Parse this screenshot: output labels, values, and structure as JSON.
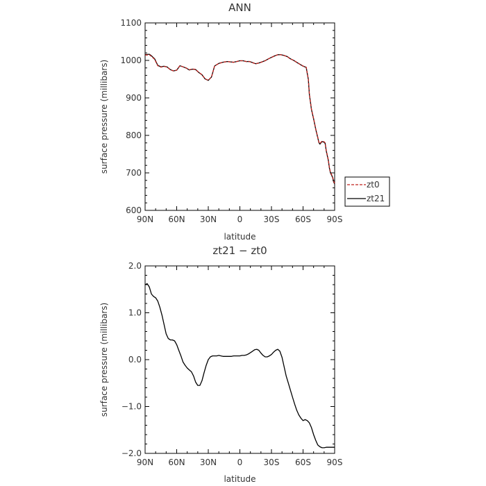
{
  "chart_data": [
    {
      "type": "line",
      "title": "ANN",
      "xlabel": "latitude",
      "ylabel": "surface pressure (millibars)",
      "xlim": [
        -90,
        90
      ],
      "ylim": [
        600,
        1100
      ],
      "x_ticks": [
        -90,
        -60,
        -30,
        0,
        30,
        60,
        90
      ],
      "x_tick_labels": [
        "90N",
        "60N",
        "30N",
        "0",
        "30S",
        "60S",
        "90S"
      ],
      "y_ticks": [
        600,
        700,
        800,
        900,
        1000,
        1100
      ],
      "y_tick_labels": [
        "600",
        "700",
        "800",
        "900",
        "1000",
        "1100"
      ],
      "legend_position": "right-bottom",
      "series": [
        {
          "name": "zt0",
          "color": "#c0201c",
          "dash": "dashed",
          "x": [
            -90,
            -86,
            -84,
            -81,
            -78,
            -75,
            -72,
            -69,
            -66,
            -63,
            -60,
            -57,
            -54,
            -51,
            -48,
            -45,
            -42,
            -39,
            -36,
            -33,
            -30,
            -27,
            -24,
            -20,
            -16,
            -12,
            -9,
            -6,
            -3,
            0,
            3,
            6,
            9,
            12,
            15,
            18,
            21,
            24,
            27,
            30,
            33,
            36,
            39,
            42,
            45,
            48,
            51,
            54,
            57,
            60,
            63,
            65,
            66,
            68,
            70,
            72,
            74,
            75,
            76,
            78,
            80,
            81,
            82,
            84,
            85,
            86,
            88,
            89,
            90
          ],
          "values": [
            1014,
            1015,
            1011,
            1003,
            986,
            982,
            984,
            982,
            975,
            972,
            974,
            986,
            983,
            980,
            975,
            977,
            976,
            968,
            962,
            951,
            947,
            956,
            985,
            992,
            995,
            997,
            996,
            995,
            997,
            999,
            999,
            997,
            997,
            994,
            991,
            993,
            996,
            999,
            1004,
            1008,
            1012,
            1015,
            1015,
            1013,
            1010,
            1004,
            1000,
            995,
            990,
            985,
            982,
            950,
            910,
            870,
            845,
            818,
            795,
            782,
            778,
            785,
            783,
            780,
            760,
            735,
            715,
            702,
            690,
            678,
            672
          ]
        },
        {
          "name": "zt21",
          "color": "#000000",
          "dash": "solid",
          "x": [
            -90,
            -86,
            -84,
            -81,
            -78,
            -75,
            -72,
            -69,
            -66,
            -63,
            -60,
            -57,
            -54,
            -51,
            -48,
            -45,
            -42,
            -39,
            -36,
            -33,
            -30,
            -27,
            -24,
            -20,
            -16,
            -12,
            -9,
            -6,
            -3,
            0,
            3,
            6,
            9,
            12,
            15,
            18,
            21,
            24,
            27,
            30,
            33,
            36,
            39,
            42,
            45,
            48,
            51,
            54,
            57,
            60,
            63,
            65,
            66,
            68,
            70,
            72,
            74,
            75,
            76,
            78,
            80,
            81,
            82,
            84,
            85,
            86,
            88,
            89,
            90
          ],
          "values": [
            1015.6,
            1016.5,
            1012.4,
            1004.3,
            987.0,
            982.8,
            984.5,
            982.4,
            975.3,
            972.0,
            973.9,
            985.7,
            982.7,
            979.6,
            974.5,
            976.6,
            975.6,
            967.6,
            961.6,
            950.6,
            946.7,
            955.8,
            985.1,
            992.1,
            995.1,
            997.1,
            996.1,
            995.1,
            997.1,
            999.1,
            999.1,
            997.1,
            997.2,
            994.2,
            991.2,
            993.2,
            996.2,
            999.2,
            1004.1,
            1008.1,
            1012.1,
            1015.1,
            1015.2,
            1013.2,
            1010.2,
            1004.2,
            1000.1,
            994.9,
            989.7,
            984.6,
            981.5,
            949.4,
            909.3,
            868.9,
            843.9,
            816.8,
            793.7,
            780.7,
            776.6,
            783.6,
            781.7,
            778.7,
            758.6,
            733.4,
            713.3,
            700.2,
            688.2,
            676.2,
            670.2
          ]
        }
      ]
    },
    {
      "type": "line",
      "title": "zt21 − zt0",
      "xlabel": "latitude",
      "ylabel": "surface pressure (millibars)",
      "xlim": [
        -90,
        90
      ],
      "ylim": [
        -2.0,
        2.0
      ],
      "x_ticks": [
        -90,
        -60,
        -30,
        0,
        30,
        60,
        90
      ],
      "x_tick_labels": [
        "90N",
        "60N",
        "30N",
        "0",
        "30S",
        "60S",
        "90S"
      ],
      "y_ticks": [
        -2.0,
        -1.0,
        0.0,
        1.0,
        2.0
      ],
      "y_tick_labels": [
        "−2.0",
        "−1.0",
        "0.0",
        "1.0",
        "2.0"
      ],
      "series": [
        {
          "color": "#000000",
          "dash": "solid",
          "x": [
            -90,
            -88,
            -86,
            -84,
            -82,
            -80,
            -78,
            -76,
            -74,
            -72,
            -70,
            -68,
            -66,
            -64,
            -62,
            -60,
            -58,
            -56,
            -54,
            -52,
            -50,
            -48,
            -46,
            -44,
            -42,
            -40,
            -38,
            -36,
            -34,
            -32,
            -30,
            -28,
            -26,
            -24,
            -22,
            -20,
            -18,
            -16,
            -14,
            -12,
            -10,
            -8,
            -6,
            -4,
            -2,
            0,
            2,
            4,
            6,
            8,
            10,
            12,
            14,
            16,
            18,
            20,
            22,
            24,
            26,
            28,
            30,
            32,
            34,
            36,
            38,
            40,
            42,
            44,
            46,
            48,
            50,
            52,
            54,
            56,
            58,
            60,
            62,
            64,
            66,
            68,
            70,
            72,
            74,
            76,
            78,
            80,
            82,
            84,
            86,
            88,
            90
          ],
          "values": [
            1.6,
            1.62,
            1.55,
            1.4,
            1.35,
            1.32,
            1.25,
            1.12,
            0.95,
            0.75,
            0.55,
            0.45,
            0.42,
            0.42,
            0.4,
            0.32,
            0.2,
            0.08,
            -0.05,
            -0.12,
            -0.18,
            -0.22,
            -0.26,
            -0.35,
            -0.48,
            -0.55,
            -0.55,
            -0.45,
            -0.28,
            -0.12,
            0.0,
            0.06,
            0.08,
            0.08,
            0.08,
            0.09,
            0.08,
            0.07,
            0.07,
            0.07,
            0.07,
            0.07,
            0.08,
            0.08,
            0.08,
            0.08,
            0.09,
            0.09,
            0.1,
            0.12,
            0.15,
            0.18,
            0.21,
            0.22,
            0.2,
            0.14,
            0.09,
            0.06,
            0.06,
            0.08,
            0.11,
            0.16,
            0.2,
            0.22,
            0.18,
            0.05,
            -0.15,
            -0.35,
            -0.5,
            -0.65,
            -0.8,
            -0.95,
            -1.08,
            -1.18,
            -1.25,
            -1.3,
            -1.28,
            -1.3,
            -1.35,
            -1.45,
            -1.6,
            -1.72,
            -1.82,
            -1.86,
            -1.88,
            -1.88,
            -1.87,
            -1.87,
            -1.87,
            -1.87,
            -1.87
          ]
        }
      ]
    }
  ]
}
